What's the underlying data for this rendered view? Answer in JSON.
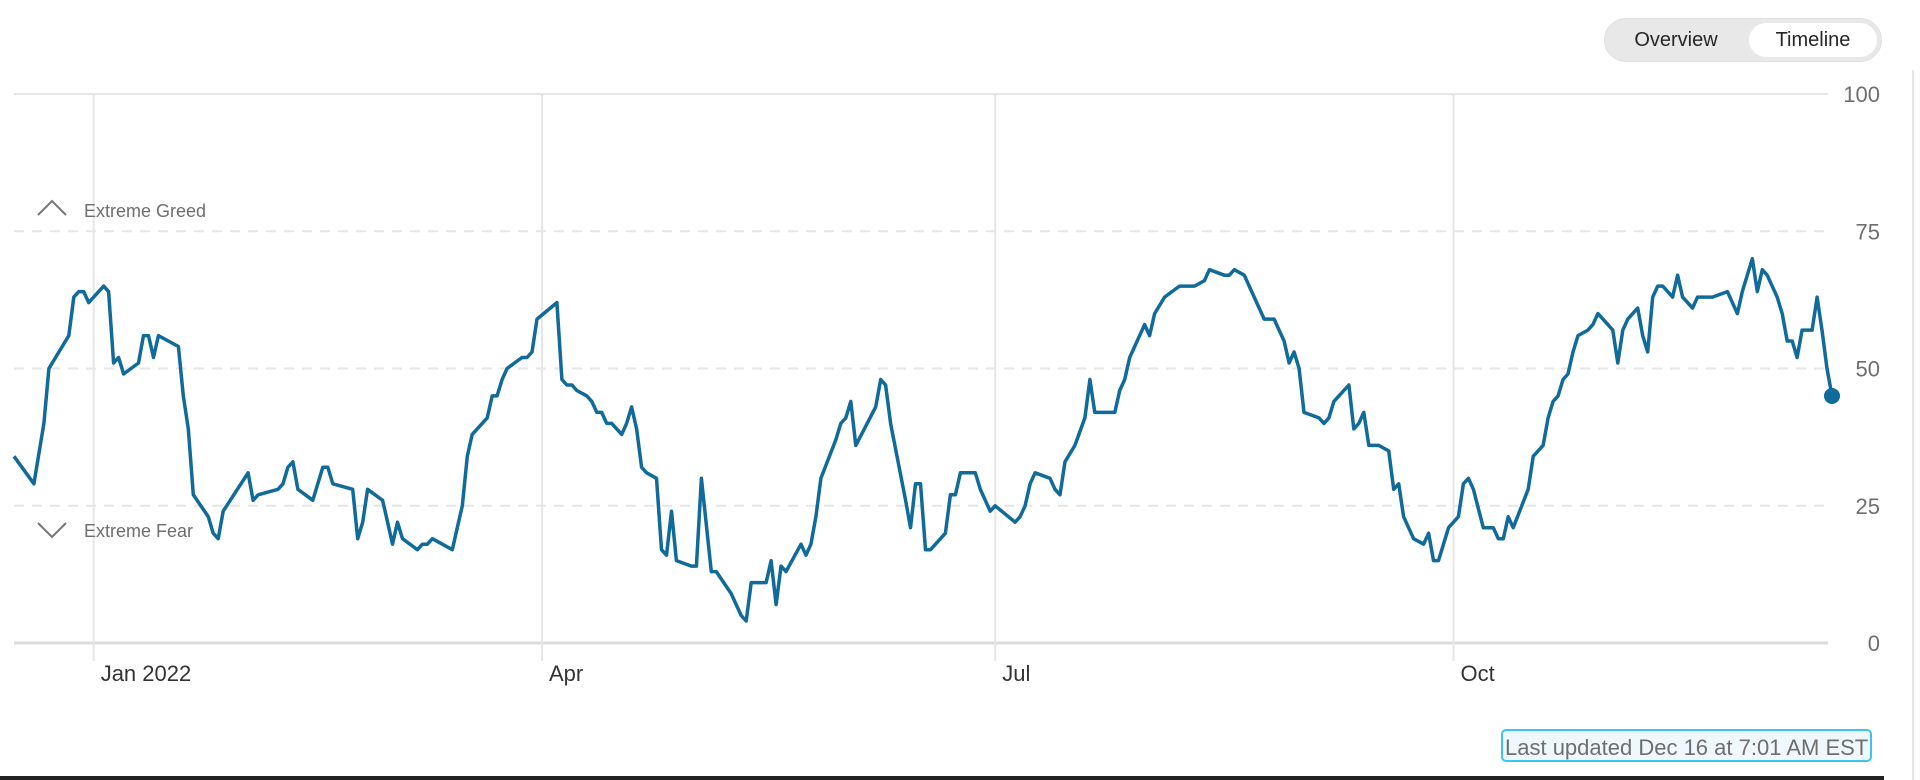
{
  "view_toggle": {
    "options": [
      "Overview",
      "Timeline"
    ],
    "selected": "Timeline"
  },
  "last_updated": "Last updated Dec 16 at 7:01 AM EST",
  "colors": {
    "line": "#106a9a",
    "grid": "#e6e6e6",
    "axis_text": "#6e6e6e"
  },
  "chart_data": {
    "type": "line",
    "title": "",
    "xlabel": "",
    "ylabel": "",
    "ylim": [
      0,
      100
    ],
    "yticks": [
      0,
      25,
      50,
      75,
      100
    ],
    "xticks": [
      {
        "date": "2022-01-01",
        "label": "Jan 2022"
      },
      {
        "date": "2022-04-01",
        "label": "Apr"
      },
      {
        "date": "2022-07-01",
        "label": "Jul"
      },
      {
        "date": "2022-10-01",
        "label": "Oct"
      }
    ],
    "xlim": [
      "2021-12-16",
      "2022-12-16"
    ],
    "grid": {
      "horizontal": "dashed",
      "vertical_at_xticks": true
    },
    "bands": [
      {
        "label": "Extreme Greed",
        "icon": "chevron-up-icon",
        "threshold": 75
      },
      {
        "label": "Extreme Fear",
        "icon": "chevron-down-icon",
        "threshold": 25
      }
    ],
    "last_point_marker": true,
    "points": [
      [
        "2021-12-16",
        34
      ],
      [
        "2021-12-20",
        29
      ],
      [
        "2021-12-22",
        40
      ],
      [
        "2021-12-23",
        50
      ],
      [
        "2021-12-27",
        56
      ],
      [
        "2021-12-28",
        63
      ],
      [
        "2021-12-29",
        64
      ],
      [
        "2021-12-30",
        64
      ],
      [
        "2021-12-31",
        62
      ],
      [
        "2022-01-03",
        65
      ],
      [
        "2022-01-04",
        64
      ],
      [
        "2022-01-05",
        51
      ],
      [
        "2022-01-06",
        52
      ],
      [
        "2022-01-07",
        49
      ],
      [
        "2022-01-10",
        51
      ],
      [
        "2022-01-11",
        56
      ],
      [
        "2022-01-12",
        56
      ],
      [
        "2022-01-13",
        52
      ],
      [
        "2022-01-14",
        56
      ],
      [
        "2022-01-18",
        54
      ],
      [
        "2022-01-19",
        45
      ],
      [
        "2022-01-20",
        39
      ],
      [
        "2022-01-21",
        27
      ],
      [
        "2022-01-24",
        23
      ],
      [
        "2022-01-25",
        20
      ],
      [
        "2022-01-26",
        19
      ],
      [
        "2022-01-27",
        24
      ],
      [
        "2022-02-01",
        31
      ],
      [
        "2022-02-02",
        26
      ],
      [
        "2022-02-03",
        27
      ],
      [
        "2022-02-07",
        28
      ],
      [
        "2022-02-08",
        29
      ],
      [
        "2022-02-09",
        32
      ],
      [
        "2022-02-10",
        33
      ],
      [
        "2022-02-11",
        28
      ],
      [
        "2022-02-14",
        26
      ],
      [
        "2022-02-15",
        29
      ],
      [
        "2022-02-16",
        32
      ],
      [
        "2022-02-17",
        32
      ],
      [
        "2022-02-18",
        29
      ],
      [
        "2022-02-22",
        28
      ],
      [
        "2022-02-23",
        19
      ],
      [
        "2022-02-24",
        22
      ],
      [
        "2022-02-25",
        28
      ],
      [
        "2022-02-28",
        26
      ],
      [
        "2022-03-01",
        22
      ],
      [
        "2022-03-02",
        18
      ],
      [
        "2022-03-03",
        22
      ],
      [
        "2022-03-04",
        19
      ],
      [
        "2022-03-07",
        17
      ],
      [
        "2022-03-08",
        18
      ],
      [
        "2022-03-09",
        18
      ],
      [
        "2022-03-10",
        19
      ],
      [
        "2022-03-14",
        17
      ],
      [
        "2022-03-15",
        21
      ],
      [
        "2022-03-16",
        25
      ],
      [
        "2022-03-17",
        34
      ],
      [
        "2022-03-18",
        38
      ],
      [
        "2022-03-21",
        41
      ],
      [
        "2022-03-22",
        45
      ],
      [
        "2022-03-23",
        45
      ],
      [
        "2022-03-24",
        48
      ],
      [
        "2022-03-25",
        50
      ],
      [
        "2022-03-28",
        52
      ],
      [
        "2022-03-29",
        52
      ],
      [
        "2022-03-30",
        53
      ],
      [
        "2022-03-31",
        59
      ],
      [
        "2022-04-04",
        62
      ],
      [
        "2022-04-05",
        48
      ],
      [
        "2022-04-06",
        47
      ],
      [
        "2022-04-07",
        47
      ],
      [
        "2022-04-08",
        46
      ],
      [
        "2022-04-10",
        45
      ],
      [
        "2022-04-11",
        44
      ],
      [
        "2022-04-12",
        42
      ],
      [
        "2022-04-13",
        42
      ],
      [
        "2022-04-14",
        40
      ],
      [
        "2022-04-15",
        40
      ],
      [
        "2022-04-17",
        38
      ],
      [
        "2022-04-18",
        40
      ],
      [
        "2022-04-19",
        43
      ],
      [
        "2022-04-20",
        39
      ],
      [
        "2022-04-21",
        32
      ],
      [
        "2022-04-22",
        31
      ],
      [
        "2022-04-24",
        30
      ],
      [
        "2022-04-25",
        17
      ],
      [
        "2022-04-26",
        16
      ],
      [
        "2022-04-27",
        24
      ],
      [
        "2022-04-28",
        15
      ],
      [
        "2022-05-01",
        14
      ],
      [
        "2022-05-02",
        14
      ],
      [
        "2022-05-03",
        30
      ],
      [
        "2022-05-05",
        13
      ],
      [
        "2022-05-06",
        13
      ],
      [
        "2022-05-09",
        9
      ],
      [
        "2022-05-10",
        7
      ],
      [
        "2022-05-11",
        5
      ],
      [
        "2022-05-12",
        4
      ],
      [
        "2022-05-13",
        11
      ],
      [
        "2022-05-16",
        11
      ],
      [
        "2022-05-17",
        15
      ],
      [
        "2022-05-18",
        7
      ],
      [
        "2022-05-19",
        14
      ],
      [
        "2022-05-20",
        13
      ],
      [
        "2022-05-23",
        18
      ],
      [
        "2022-05-24",
        16
      ],
      [
        "2022-05-25",
        18
      ],
      [
        "2022-05-26",
        23
      ],
      [
        "2022-05-27",
        30
      ],
      [
        "2022-05-30",
        37
      ],
      [
        "2022-05-31",
        40
      ],
      [
        "2022-06-01",
        41
      ],
      [
        "2022-06-02",
        44
      ],
      [
        "2022-06-03",
        36
      ],
      [
        "2022-06-07",
        43
      ],
      [
        "2022-06-08",
        48
      ],
      [
        "2022-06-09",
        47
      ],
      [
        "2022-06-10",
        40
      ],
      [
        "2022-06-13",
        26
      ],
      [
        "2022-06-14",
        21
      ],
      [
        "2022-06-15",
        29
      ],
      [
        "2022-06-16",
        29
      ],
      [
        "2022-06-17",
        17
      ],
      [
        "2022-06-18",
        17
      ],
      [
        "2022-06-21",
        20
      ],
      [
        "2022-06-22",
        27
      ],
      [
        "2022-06-23",
        27
      ],
      [
        "2022-06-24",
        31
      ],
      [
        "2022-06-27",
        31
      ],
      [
        "2022-06-28",
        28
      ],
      [
        "2022-06-29",
        26
      ],
      [
        "2022-06-30",
        24
      ],
      [
        "2022-07-01",
        25
      ],
      [
        "2022-07-05",
        22
      ],
      [
        "2022-07-06",
        23
      ],
      [
        "2022-07-07",
        25
      ],
      [
        "2022-07-08",
        29
      ],
      [
        "2022-07-09",
        31
      ],
      [
        "2022-07-12",
        30
      ],
      [
        "2022-07-13",
        28
      ],
      [
        "2022-07-14",
        27
      ],
      [
        "2022-07-15",
        33
      ],
      [
        "2022-07-17",
        36
      ],
      [
        "2022-07-19",
        41
      ],
      [
        "2022-07-20",
        48
      ],
      [
        "2022-07-21",
        42
      ],
      [
        "2022-07-25",
        42
      ],
      [
        "2022-07-26",
        46
      ],
      [
        "2022-07-27",
        48
      ],
      [
        "2022-07-28",
        52
      ],
      [
        "2022-07-31",
        58
      ],
      [
        "2022-08-01",
        56
      ],
      [
        "2022-08-02",
        60
      ],
      [
        "2022-08-04",
        63
      ],
      [
        "2022-08-07",
        65
      ],
      [
        "2022-08-08",
        65
      ],
      [
        "2022-08-10",
        65
      ],
      [
        "2022-08-12",
        66
      ],
      [
        "2022-08-13",
        68
      ],
      [
        "2022-08-16",
        67
      ],
      [
        "2022-08-17",
        67
      ],
      [
        "2022-08-18",
        68
      ],
      [
        "2022-08-20",
        67
      ],
      [
        "2022-08-21",
        65
      ],
      [
        "2022-08-23",
        61
      ],
      [
        "2022-08-24",
        59
      ],
      [
        "2022-08-26",
        59
      ],
      [
        "2022-08-27",
        57
      ],
      [
        "2022-08-28",
        55
      ],
      [
        "2022-08-29",
        51
      ],
      [
        "2022-08-30",
        53
      ],
      [
        "2022-08-31",
        50
      ],
      [
        "2022-09-01",
        42
      ],
      [
        "2022-09-04",
        41
      ],
      [
        "2022-09-05",
        40
      ],
      [
        "2022-09-06",
        41
      ],
      [
        "2022-09-07",
        44
      ],
      [
        "2022-09-10",
        47
      ],
      [
        "2022-09-11",
        39
      ],
      [
        "2022-09-12",
        40
      ],
      [
        "2022-09-13",
        42
      ],
      [
        "2022-09-14",
        36
      ],
      [
        "2022-09-15",
        36
      ],
      [
        "2022-09-16",
        36
      ],
      [
        "2022-09-18",
        35
      ],
      [
        "2022-09-19",
        28
      ],
      [
        "2022-09-20",
        29
      ],
      [
        "2022-09-21",
        23
      ],
      [
        "2022-09-23",
        19
      ],
      [
        "2022-09-25",
        18
      ],
      [
        "2022-09-26",
        20
      ],
      [
        "2022-09-27",
        15
      ],
      [
        "2022-09-28",
        15
      ],
      [
        "2022-09-30",
        21
      ],
      [
        "2022-10-02",
        23
      ],
      [
        "2022-10-03",
        29
      ],
      [
        "2022-10-04",
        30
      ],
      [
        "2022-10-05",
        28
      ],
      [
        "2022-10-07",
        21
      ],
      [
        "2022-10-09",
        21
      ],
      [
        "2022-10-10",
        19
      ],
      [
        "2022-10-11",
        19
      ],
      [
        "2022-10-12",
        23
      ],
      [
        "2022-10-13",
        21
      ],
      [
        "2022-10-16",
        28
      ],
      [
        "2022-10-17",
        34
      ],
      [
        "2022-10-19",
        36
      ],
      [
        "2022-10-20",
        41
      ],
      [
        "2022-10-21",
        44
      ],
      [
        "2022-10-22",
        45
      ],
      [
        "2022-10-23",
        48
      ],
      [
        "2022-10-24",
        49
      ],
      [
        "2022-10-25",
        53
      ],
      [
        "2022-10-26",
        56
      ],
      [
        "2022-10-28",
        57
      ],
      [
        "2022-10-29",
        58
      ],
      [
        "2022-10-30",
        60
      ],
      [
        "2022-11-01",
        58
      ],
      [
        "2022-11-02",
        57
      ],
      [
        "2022-11-03",
        51
      ],
      [
        "2022-11-04",
        57
      ],
      [
        "2022-11-05",
        59
      ],
      [
        "2022-11-07",
        61
      ],
      [
        "2022-11-08",
        56
      ],
      [
        "2022-11-09",
        53
      ],
      [
        "2022-11-10",
        63
      ],
      [
        "2022-11-11",
        65
      ],
      [
        "2022-11-12",
        65
      ],
      [
        "2022-11-14",
        63
      ],
      [
        "2022-11-15",
        67
      ],
      [
        "2022-11-16",
        63
      ],
      [
        "2022-11-17",
        62
      ],
      [
        "2022-11-18",
        61
      ],
      [
        "2022-11-19",
        63
      ],
      [
        "2022-11-20",
        63
      ],
      [
        "2022-11-21",
        63
      ],
      [
        "2022-11-22",
        63
      ],
      [
        "2022-11-25",
        64
      ],
      [
        "2022-11-27",
        60
      ],
      [
        "2022-11-28",
        64
      ],
      [
        "2022-11-30",
        70
      ],
      [
        "2022-12-01",
        64
      ],
      [
        "2022-12-02",
        68
      ],
      [
        "2022-12-03",
        67
      ],
      [
        "2022-12-04",
        65
      ],
      [
        "2022-12-05",
        63
      ],
      [
        "2022-12-06",
        60
      ],
      [
        "2022-12-07",
        55
      ],
      [
        "2022-12-08",
        55
      ],
      [
        "2022-12-09",
        52
      ],
      [
        "2022-12-10",
        57
      ],
      [
        "2022-12-12",
        57
      ],
      [
        "2022-12-13",
        63
      ],
      [
        "2022-12-14",
        57
      ],
      [
        "2022-12-15",
        50
      ],
      [
        "2022-12-16",
        45
      ]
    ]
  }
}
